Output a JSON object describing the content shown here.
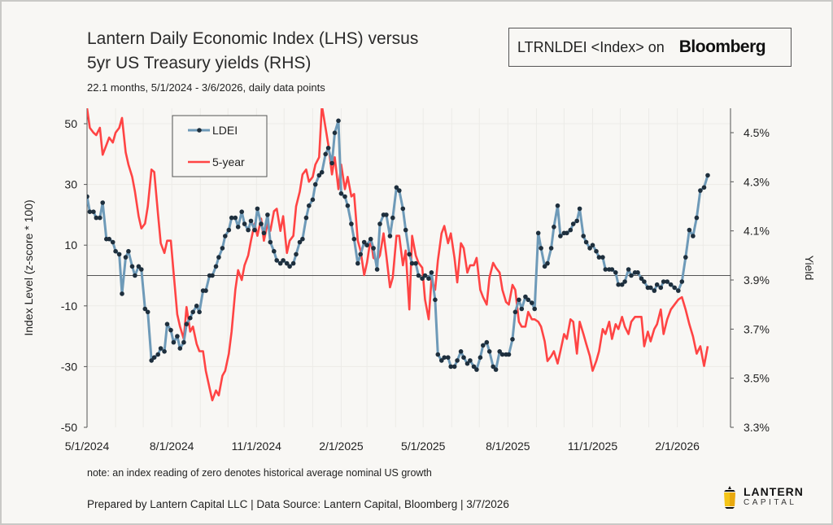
{
  "header": {
    "title_line1": "Lantern Daily Economic Index (LHS) versus",
    "title_line2": "5yr US Treasury yields (RHS)",
    "subtitle": "22.1 months, 5/1/2024 - 3/6/2026, daily data points",
    "ticker_text": "LTRNLDEI <Index> on",
    "ticker_brand": "Bloomberg"
  },
  "footer": {
    "note": "note: an index reading of zero denotes historical average nominal US growth",
    "prepared": "Prepared by Lantern Capital LLC | Data Source: Lantern Capital, Bloomberg | 3/7/2026",
    "logo_line1": "LANTERN",
    "logo_line2": "CAPITAL"
  },
  "colors": {
    "ldei_line": "#6e9ab8",
    "ldei_marker": "#1e2f3d",
    "yield_line": "#ff4444",
    "background": "#f8f7f4",
    "logo_yellow": "#f5c518"
  },
  "chart_data": {
    "type": "line",
    "title": "Lantern Daily Economic Index (LHS) versus 5yr US Treasury yields (RHS)",
    "xlabel": "",
    "ylabel": "Index Level (z-score * 100)",
    "y2label": "Yield",
    "x_start": "5/1/2024",
    "x_end": "3/6/2026",
    "xticks": [
      "5/1/2024",
      "8/1/2024",
      "11/1/2024",
      "2/1/2025",
      "5/1/2025",
      "8/1/2025",
      "11/1/2025",
      "2/1/2026"
    ],
    "ylim": [
      -50,
      50
    ],
    "yticks": [
      "50",
      "30",
      "10",
      "-10",
      "-30",
      "-50"
    ],
    "y2lim": [
      3.3,
      4.6
    ],
    "y2ticks": [
      "4.5%",
      "4.3%",
      "4.1%",
      "3.9%",
      "3.7%",
      "3.5%",
      "3.3%"
    ],
    "reference_line": {
      "axis": "left",
      "value": 0
    },
    "legend": {
      "position": "top-left",
      "entries": [
        "LDEI",
        "5-year"
      ]
    },
    "grid": true,
    "series": [
      {
        "name": "LDEI",
        "axis": "left",
        "x_days": [
          0,
          3,
          7,
          10,
          14,
          17,
          21,
          24,
          28,
          31,
          35,
          38,
          42,
          45,
          49,
          52,
          56,
          59,
          63,
          66,
          70,
          73,
          77,
          80,
          84,
          87,
          91,
          94,
          98,
          101,
          105,
          108,
          112,
          115,
          119,
          122,
          126,
          129,
          133,
          136,
          140,
          143,
          147,
          150,
          154,
          157,
          161,
          164,
          168,
          171,
          175,
          178,
          182,
          185,
          189,
          192,
          196,
          199,
          203,
          206,
          210,
          213,
          217,
          220,
          224,
          227,
          231,
          234,
          238,
          241,
          245,
          248,
          252,
          255,
          259,
          262,
          266,
          269,
          273,
          276,
          280,
          283,
          287,
          290,
          294,
          297,
          301,
          304,
          308,
          311,
          315,
          318,
          322,
          325,
          329,
          332,
          336,
          339,
          343,
          346,
          350,
          353,
          357,
          360,
          364,
          367,
          371,
          374,
          378,
          381,
          385,
          388,
          392,
          395,
          399,
          402,
          406,
          409,
          413,
          416,
          420,
          423,
          427,
          430,
          434,
          437,
          441,
          444,
          448,
          451,
          455,
          458,
          462,
          465,
          469,
          472,
          476,
          479,
          483,
          486,
          490,
          493,
          497,
          500,
          504,
          507,
          511,
          514,
          518,
          521,
          525,
          528,
          532,
          535,
          539,
          542,
          546,
          549,
          553,
          556,
          560,
          563,
          567,
          570,
          574,
          577,
          581,
          584,
          588,
          591,
          595,
          598,
          602,
          605,
          609,
          612,
          616,
          619,
          623,
          626,
          630,
          634,
          638,
          642,
          646,
          650,
          654,
          658,
          662,
          666,
          670,
          674
        ],
        "values": [
          26,
          21,
          21,
          19,
          19,
          24,
          12,
          12,
          11,
          8,
          7,
          -6,
          6,
          8,
          3,
          0,
          3,
          2,
          -11,
          -12,
          -28,
          -27,
          -26,
          -24,
          -25,
          -16,
          -18,
          -22,
          -20,
          -24,
          -22,
          -16,
          -14,
          -12,
          -10,
          -12,
          -5,
          -5,
          0,
          0,
          3,
          6,
          9,
          13,
          15,
          19,
          19,
          16,
          21,
          17,
          15,
          18,
          15,
          22,
          17,
          14,
          20,
          11,
          8,
          5,
          4,
          5,
          4,
          3,
          4,
          7,
          11,
          12,
          19,
          23,
          25,
          30,
          33,
          34,
          40,
          42,
          37,
          47,
          51,
          27,
          26,
          23,
          17,
          12,
          4,
          7,
          11,
          10,
          12,
          9,
          2,
          17,
          20,
          20,
          13,
          19,
          29,
          28,
          22,
          15,
          7,
          4,
          4,
          0,
          -1,
          0,
          -1,
          1,
          -8,
          -26,
          -28,
          -27,
          -27,
          -30,
          -30,
          -28,
          -25,
          -27,
          -29,
          -28,
          -30,
          -31,
          -27,
          -23,
          -22,
          -25,
          -30,
          -31,
          -25,
          -26,
          -26,
          -26,
          -21,
          -12,
          -8,
          -11,
          -7,
          -8,
          -9,
          -11,
          14,
          9,
          3,
          4,
          9,
          16,
          23,
          13,
          14,
          14,
          15,
          17,
          18,
          22,
          13,
          11,
          9,
          10,
          8,
          6,
          6,
          2,
          2,
          2,
          1,
          -3,
          -3,
          -2,
          2,
          0,
          1,
          1,
          -1,
          -2,
          -4,
          -4,
          -5,
          -3,
          -4,
          -2,
          -2,
          -3,
          -4,
          -5,
          -2,
          6,
          15,
          13,
          19,
          28,
          29,
          33,
          36
        ],
        "markers": true
      },
      {
        "name": "5-year",
        "axis": "right",
        "x_days": [
          0,
          3,
          7,
          10,
          14,
          17,
          21,
          24,
          28,
          31,
          35,
          38,
          42,
          45,
          49,
          52,
          56,
          59,
          63,
          66,
          70,
          73,
          77,
          80,
          84,
          87,
          91,
          94,
          98,
          101,
          105,
          108,
          112,
          115,
          119,
          122,
          126,
          129,
          133,
          136,
          140,
          143,
          147,
          150,
          154,
          157,
          161,
          164,
          168,
          171,
          175,
          178,
          182,
          185,
          189,
          192,
          196,
          199,
          203,
          206,
          210,
          213,
          217,
          220,
          224,
          227,
          231,
          234,
          238,
          241,
          245,
          248,
          252,
          255,
          259,
          262,
          266,
          269,
          273,
          276,
          280,
          283,
          287,
          290,
          294,
          297,
          301,
          304,
          308,
          311,
          315,
          318,
          322,
          325,
          329,
          332,
          336,
          339,
          343,
          346,
          350,
          353,
          357,
          360,
          364,
          367,
          371,
          374,
          378,
          381,
          385,
          388,
          392,
          395,
          399,
          402,
          406,
          409,
          413,
          416,
          420,
          423,
          427,
          430,
          434,
          437,
          441,
          444,
          448,
          451,
          455,
          458,
          462,
          465,
          469,
          472,
          476,
          479,
          483,
          486,
          490,
          493,
          497,
          500,
          504,
          507,
          511,
          514,
          518,
          521,
          525,
          528,
          532,
          535,
          539,
          542,
          546,
          549,
          553,
          556,
          560,
          563,
          567,
          570,
          574,
          577,
          581,
          584,
          588,
          591,
          595,
          598,
          602,
          605,
          609,
          612,
          616,
          619,
          623,
          626,
          630,
          634,
          638,
          642,
          646,
          650,
          654,
          658,
          662,
          666,
          670,
          674
        ],
        "values": [
          4.6,
          4.52,
          4.5,
          4.49,
          4.52,
          4.41,
          4.45,
          4.48,
          4.46,
          4.5,
          4.52,
          4.56,
          4.42,
          4.37,
          4.32,
          4.26,
          4.16,
          4.11,
          4.13,
          4.2,
          4.35,
          4.34,
          4.17,
          4.05,
          4.01,
          4.06,
          4.06,
          3.93,
          3.76,
          3.71,
          3.66,
          3.79,
          3.69,
          3.71,
          3.64,
          3.61,
          3.61,
          3.53,
          3.46,
          3.41,
          3.45,
          3.43,
          3.51,
          3.53,
          3.6,
          3.69,
          3.86,
          3.94,
          3.9,
          3.96,
          4.0,
          4.06,
          4.13,
          4.08,
          4.15,
          4.06,
          4.13,
          4.1,
          4.18,
          4.19,
          4.1,
          4.16,
          4.01,
          4.06,
          4.08,
          4.2,
          4.26,
          4.33,
          4.35,
          4.3,
          4.32,
          4.37,
          4.4,
          4.61,
          4.52,
          4.45,
          4.33,
          4.4,
          4.27,
          4.37,
          4.27,
          4.32,
          4.24,
          4.25,
          4.06,
          4.02,
          3.92,
          3.97,
          4.07,
          3.99,
          3.98,
          4.0,
          4.09,
          4.0,
          3.87,
          3.91,
          4.08,
          4.08,
          3.96,
          4.02,
          3.78,
          4.08,
          4.0,
          3.97,
          3.95,
          3.82,
          3.74,
          3.9,
          3.86,
          3.98,
          4.09,
          4.12,
          4.05,
          4.09,
          3.99,
          3.89,
          4.05,
          4.03,
          3.93,
          3.96,
          3.96,
          3.99,
          3.86,
          3.83,
          3.8,
          3.91,
          3.97,
          3.95,
          3.93,
          3.86,
          3.81,
          3.8,
          3.88,
          3.86,
          3.73,
          3.71,
          3.71,
          3.77,
          3.74,
          3.74,
          3.73,
          3.71,
          3.65,
          3.57,
          3.59,
          3.61,
          3.56,
          3.61,
          3.68,
          3.66,
          3.74,
          3.73,
          3.6,
          3.73,
          3.68,
          3.64,
          3.59,
          3.53,
          3.57,
          3.61,
          3.7,
          3.68,
          3.73,
          3.66,
          3.72,
          3.7,
          3.75,
          3.71,
          3.68,
          3.73,
          3.75,
          3.75,
          3.75,
          3.63,
          3.69,
          3.65,
          3.7,
          3.72,
          3.78,
          3.68,
          3.74,
          3.78,
          3.8,
          3.82,
          3.83,
          3.78,
          3.72,
          3.67,
          3.6,
          3.63,
          3.55,
          3.63,
          3.66,
          3.7
        ]
      }
    ]
  }
}
